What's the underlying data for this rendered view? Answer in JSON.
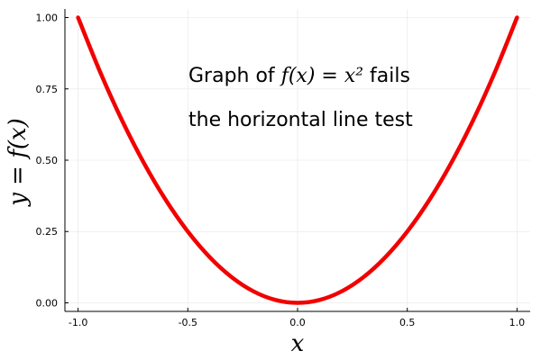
{
  "chart_data": {
    "type": "line",
    "xlabel": "x",
    "ylabel": "y = f(x)",
    "xlim": [
      -1.06,
      1.06
    ],
    "ylim": [
      -0.03,
      1.03
    ],
    "x_ticks": [
      -1.0,
      -0.5,
      0.0,
      0.5,
      1.0
    ],
    "x_tick_labels": [
      "-1.0",
      "-0.5",
      "0.0",
      "0.5",
      "1.0"
    ],
    "y_ticks": [
      0.0,
      0.25,
      0.5,
      0.75,
      1.0
    ],
    "y_tick_labels": [
      "0.00",
      "0.25",
      "0.50",
      "0.75",
      "1.00"
    ],
    "grid": true,
    "series": [
      {
        "color": "#f20000",
        "x": [
          -1.0,
          -0.9,
          -0.8,
          -0.7,
          -0.6,
          -0.5,
          -0.4,
          -0.3,
          -0.2,
          -0.1,
          0.0,
          0.1,
          0.2,
          0.3,
          0.4,
          0.5,
          0.6,
          0.7,
          0.8,
          0.9,
          1.0
        ],
        "y": [
          1.0,
          0.81,
          0.64,
          0.49,
          0.36,
          0.25,
          0.16,
          0.09,
          0.04,
          0.01,
          0.0,
          0.01,
          0.04,
          0.09,
          0.16,
          0.25,
          0.36,
          0.49,
          0.64,
          0.81,
          1.0
        ]
      }
    ],
    "annotation": {
      "line1_prefix": "Graph of ",
      "line1_math": "f(x) = x²",
      "line1_suffix": " fails",
      "line2": "the horizontal line test"
    }
  }
}
